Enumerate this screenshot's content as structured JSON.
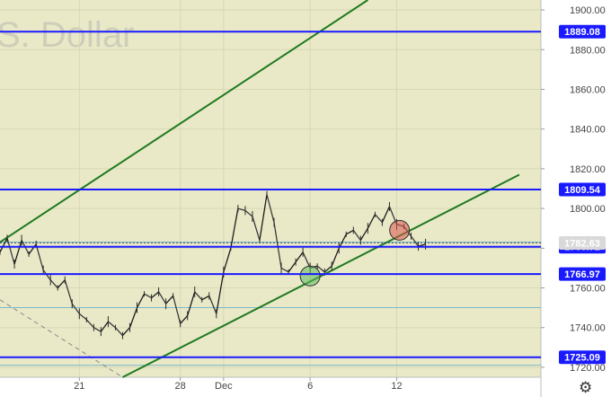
{
  "chart_data": {
    "type": "candlestick",
    "watermark": "S. Dollar",
    "ylim": [
      1715,
      1905
    ],
    "yticks": [
      "1900.00",
      "1880.00",
      "1860.00",
      "1840.00",
      "1820.00",
      "1800.00",
      "1780.00",
      "1760.00",
      "1740.00",
      "1720.00"
    ],
    "xticks": [
      {
        "label": "21",
        "day": 21
      },
      {
        "label": "28",
        "day": 28
      },
      {
        "label": "Dec",
        "day": 31
      },
      {
        "label": "6",
        "day": 37
      },
      {
        "label": "12",
        "day": 43
      }
    ],
    "xlim": [
      15.5,
      53
    ],
    "levels": [
      {
        "value": 1889.08,
        "label": "1889.08",
        "color": "#1a1aff"
      },
      {
        "value": 1809.54,
        "label": "1809.54",
        "color": "#1a1aff"
      },
      {
        "value": 1780.72,
        "label": "1780.72",
        "color": "#1a1aff"
      },
      {
        "value": 1766.97,
        "label": "1766.97",
        "color": "#1a1aff"
      },
      {
        "value": 1725.09,
        "label": "1725.09",
        "color": "#1a1aff"
      }
    ],
    "minor_levels": [
      1783,
      1750,
      1721
    ],
    "last_price": {
      "value": 1782.63,
      "label": "1782.63"
    },
    "trendlines": [
      {
        "from": [
          15.5,
          1783
        ],
        "to": [
          41.0,
          1905
        ],
        "color": "#1e7a1e"
      },
      {
        "from": [
          24.0,
          1715
        ],
        "to": [
          51.5,
          1817
        ],
        "color": "#1e7a1e"
      }
    ],
    "dashed_line": {
      "from": [
        15.5,
        1754
      ],
      "to": [
        24.0,
        1715
      ],
      "color": "#888888"
    },
    "markers": [
      {
        "day": 37.0,
        "price": 1766,
        "color": "#5cb85c",
        "label": "support"
      },
      {
        "day": 43.2,
        "price": 1789,
        "color": "#d9534f",
        "label": "resistance"
      }
    ],
    "series": [
      {
        "day": 15.5,
        "price": 1778
      },
      {
        "day": 16.0,
        "price": 1785
      },
      {
        "day": 16.5,
        "price": 1772
      },
      {
        "day": 17.0,
        "price": 1784
      },
      {
        "day": 17.5,
        "price": 1777
      },
      {
        "day": 18.0,
        "price": 1782
      },
      {
        "day": 18.5,
        "price": 1769
      },
      {
        "day": 19.0,
        "price": 1764
      },
      {
        "day": 19.5,
        "price": 1760
      },
      {
        "day": 20.0,
        "price": 1764
      },
      {
        "day": 20.5,
        "price": 1752
      },
      {
        "day": 21.0,
        "price": 1747
      },
      {
        "day": 21.5,
        "price": 1744
      },
      {
        "day": 22.0,
        "price": 1740
      },
      {
        "day": 22.5,
        "price": 1738
      },
      {
        "day": 23.0,
        "price": 1743
      },
      {
        "day": 23.5,
        "price": 1740
      },
      {
        "day": 24.0,
        "price": 1736
      },
      {
        "day": 24.5,
        "price": 1740
      },
      {
        "day": 25.0,
        "price": 1750
      },
      {
        "day": 25.5,
        "price": 1757
      },
      {
        "day": 26.0,
        "price": 1755
      },
      {
        "day": 26.5,
        "price": 1758
      },
      {
        "day": 27.0,
        "price": 1752
      },
      {
        "day": 27.5,
        "price": 1756
      },
      {
        "day": 28.0,
        "price": 1742
      },
      {
        "day": 28.5,
        "price": 1746
      },
      {
        "day": 29.0,
        "price": 1758
      },
      {
        "day": 29.5,
        "price": 1754
      },
      {
        "day": 30.0,
        "price": 1756
      },
      {
        "day": 30.5,
        "price": 1747
      },
      {
        "day": 31.0,
        "price": 1768
      },
      {
        "day": 31.5,
        "price": 1780
      },
      {
        "day": 32.0,
        "price": 1800
      },
      {
        "day": 32.5,
        "price": 1799
      },
      {
        "day": 33.0,
        "price": 1796
      },
      {
        "day": 33.5,
        "price": 1784
      },
      {
        "day": 34.0,
        "price": 1807
      },
      {
        "day": 34.5,
        "price": 1793
      },
      {
        "day": 35.0,
        "price": 1770
      },
      {
        "day": 35.5,
        "price": 1768
      },
      {
        "day": 36.0,
        "price": 1773
      },
      {
        "day": 36.5,
        "price": 1778
      },
      {
        "day": 37.0,
        "price": 1770
      },
      {
        "day": 37.5,
        "price": 1771
      },
      {
        "day": 38.0,
        "price": 1768
      },
      {
        "day": 38.5,
        "price": 1771
      },
      {
        "day": 39.0,
        "price": 1780
      },
      {
        "day": 39.5,
        "price": 1787
      },
      {
        "day": 40.0,
        "price": 1789
      },
      {
        "day": 40.5,
        "price": 1784
      },
      {
        "day": 41.0,
        "price": 1790
      },
      {
        "day": 41.5,
        "price": 1797
      },
      {
        "day": 42.0,
        "price": 1793
      },
      {
        "day": 42.5,
        "price": 1801
      },
      {
        "day": 43.0,
        "price": 1792
      },
      {
        "day": 43.5,
        "price": 1791
      },
      {
        "day": 44.0,
        "price": 1786
      },
      {
        "day": 44.5,
        "price": 1781
      },
      {
        "day": 45.0,
        "price": 1782
      }
    ]
  }
}
